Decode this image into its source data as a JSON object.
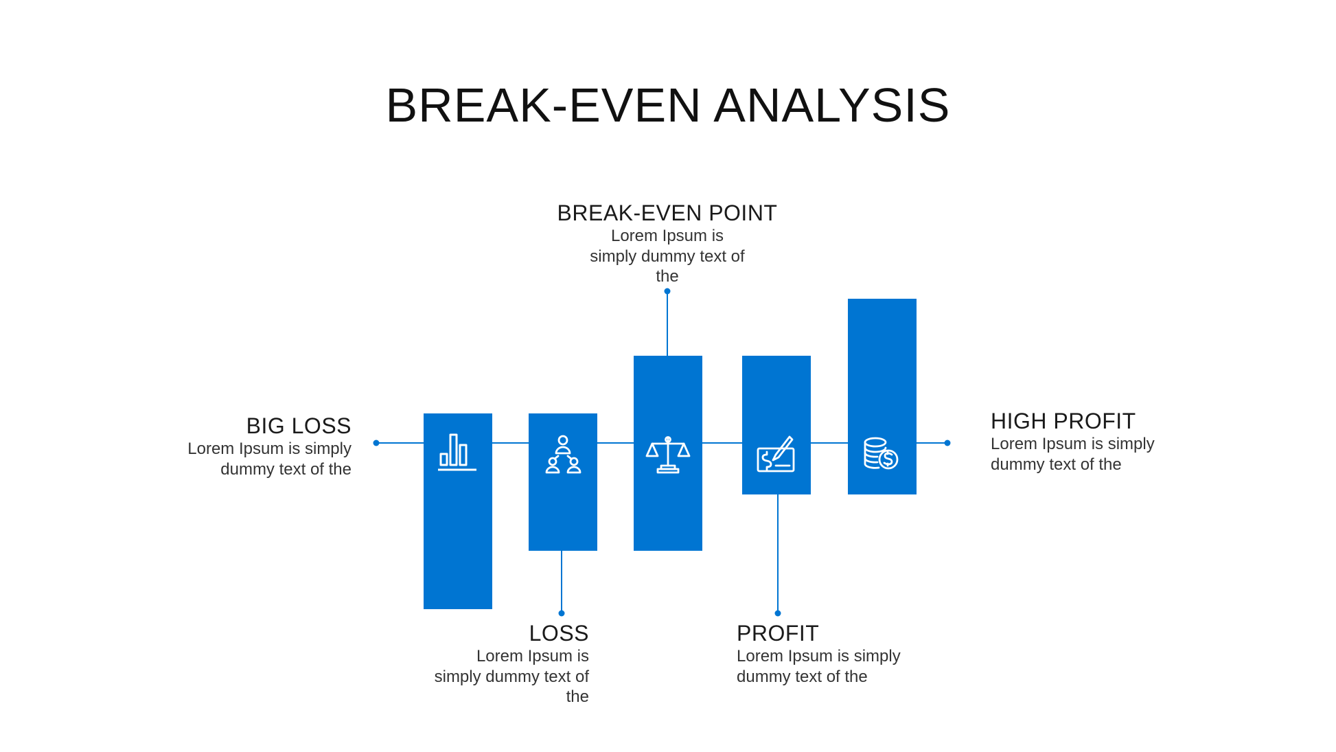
{
  "title": "BREAK-EVEN ANALYSIS",
  "accent_color": "#0075d2",
  "stages": [
    {
      "key": "big_loss",
      "heading": "BIG LOSS",
      "desc": "Lorem Ipsum is simply dummy text of the",
      "icon": "bar-chart-icon"
    },
    {
      "key": "loss",
      "heading": "LOSS",
      "desc": "Lorem Ipsum is simply dummy text of the",
      "icon": "team-hierarchy-icon"
    },
    {
      "key": "break_even_point",
      "heading": "BREAK-EVEN POINT",
      "desc": "Lorem Ipsum is simply dummy text of the",
      "icon": "balance-scale-icon"
    },
    {
      "key": "profit",
      "heading": "PROFIT",
      "desc": "Lorem Ipsum is simply dummy text of the",
      "icon": "check-signing-icon"
    },
    {
      "key": "high_profit",
      "heading": "HIGH PROFIT",
      "desc": "Lorem Ipsum is simply dummy text of the",
      "icon": "coins-icon"
    }
  ]
}
